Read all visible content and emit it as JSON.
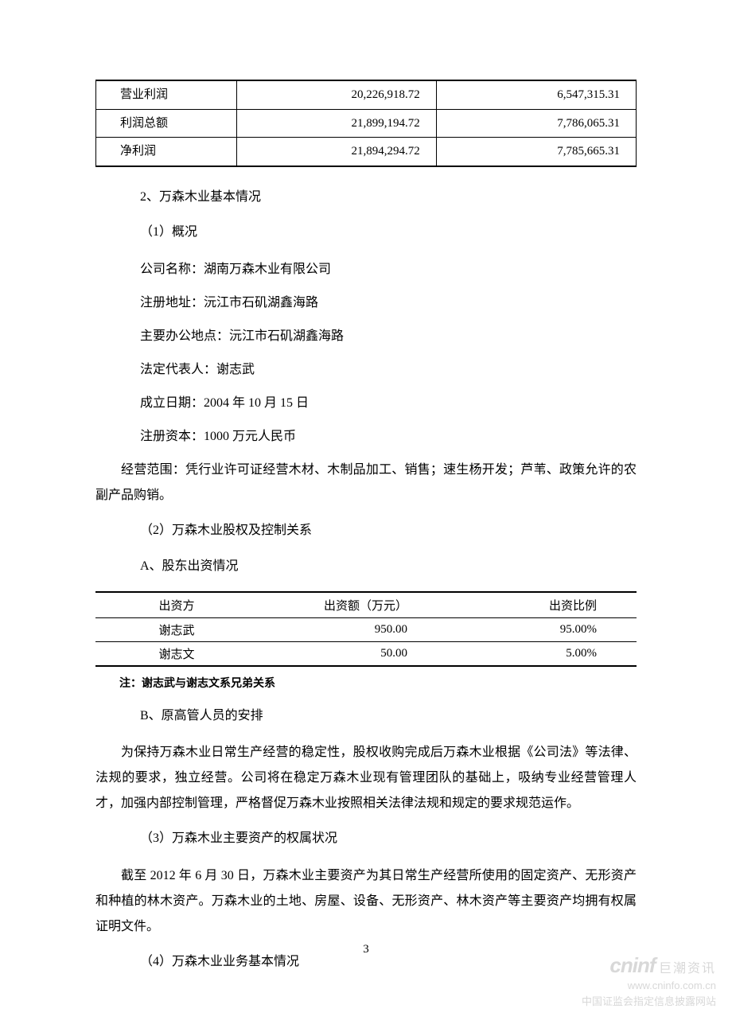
{
  "table1": {
    "rows": [
      {
        "label": "营业利润",
        "v1": "20,226,918.72",
        "v2": "6,547,315.31"
      },
      {
        "label": "利润总额",
        "v1": "21,899,194.72",
        "v2": "7,786,065.31"
      },
      {
        "label": "净利润",
        "v1": "21,894,294.72",
        "v2": "7,785,665.31"
      }
    ]
  },
  "section2": {
    "title": "2、万森木业基本情况",
    "sub1": "（1）概况",
    "info": {
      "name": "公司名称：湖南万森木业有限公司",
      "addr": "注册地址：沅江市石矶湖鑫海路",
      "office": "主要办公地点：沅江市石矶湖鑫海路",
      "legal": "法定代表人：谢志武",
      "date": "成立日期：2004 年 10 月 15 日",
      "cap": "注册资本：1000 万元人民币"
    },
    "scope": "经营范围：凭行业许可证经营木材、木制品加工、销售；速生杨开发；芦苇、政策允许的农副产品购销。",
    "sub2": "（2）万森木业股权及控制关系",
    "subA": "A、股东出资情况"
  },
  "table2": {
    "headers": {
      "h1": "出资方",
      "h2": "出资额（万元）",
      "h3": "出资比例"
    },
    "rows": [
      {
        "c1": "谢志武",
        "c2": "950.00",
        "c3": "95.00%"
      },
      {
        "c1": "谢志文",
        "c2": "50.00",
        "c3": "5.00%"
      }
    ]
  },
  "note": "注：谢志武与谢志文系兄弟关系",
  "subB": "B、原高管人员的安排",
  "paraB": "为保持万森木业日常生产经营的稳定性，股权收购完成后万森木业根据《公司法》等法律、法规的要求，独立经营。公司将在稳定万森木业现有管理团队的基础上，吸纳专业经营管理人才，加强内部控制管理，严格督促万森木业按照相关法律法规和规定的要求规范运作。",
  "sub3": "（3）万森木业主要资产的权属状况",
  "para3": "截至 2012 年 6 月 30 日，万森木业主要资产为其日常生产经营所使用的固定资产、无形资产和种植的林木资产。万森木业的土地、房屋、设备、无形资产、林木资产等主要资产均拥有权属证明文件。",
  "sub4": "（4）万森木业业务基本情况",
  "pageNumber": "3",
  "watermark": {
    "logo": "cninf",
    "logoCn": "巨潮资讯",
    "url": "www.cninfo.com.cn",
    "desc": "中国证监会指定信息披露网站"
  }
}
